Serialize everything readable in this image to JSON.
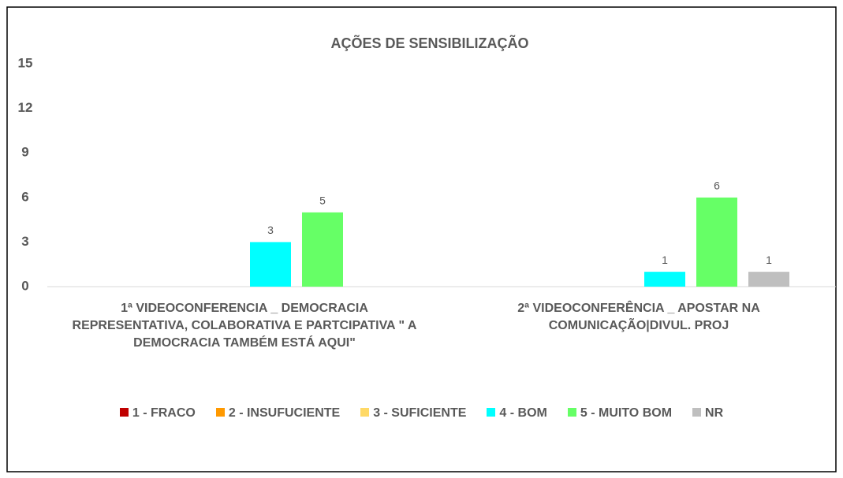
{
  "chart_data": {
    "type": "bar",
    "title": "AÇÕES DE SENSIBILIZAÇÃO",
    "categories": [
      "1ª VIDEOCONFERENCIA _ DEMOCRACIA REPRESENTATIVA, COLABORATIVA E PARTCIPATIVA \" A DEMOCRACIA TAMBÉM ESTÁ AQUI\"",
      "2ª VIDEOCONFERÊNCIA _ APOSTAR NA COMUNICAÇÃO|DIVUL. PROJ"
    ],
    "series": [
      {
        "name": "1 - FRACO",
        "color": "#c00000",
        "values": [
          null,
          null
        ]
      },
      {
        "name": "2 - INSUFUCIENTE",
        "color": "#ff9900",
        "values": [
          null,
          null
        ]
      },
      {
        "name": "3 - SUFICIENTE",
        "color": "#ffd966",
        "values": [
          null,
          null
        ]
      },
      {
        "name": "4 - BOM",
        "color": "#00ffff",
        "values": [
          3,
          1
        ]
      },
      {
        "name": "5 - MUITO BOM",
        "color": "#66ff66",
        "values": [
          5,
          6
        ]
      },
      {
        "name": "NR",
        "color": "#bfbfbf",
        "values": [
          null,
          1
        ]
      }
    ],
    "ylim": [
      0,
      15
    ],
    "yticks": [
      0,
      3,
      6,
      9,
      12,
      15
    ],
    "grid": false,
    "legend": "bottom"
  }
}
